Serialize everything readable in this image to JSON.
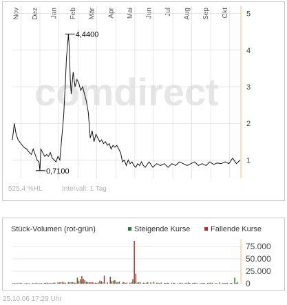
{
  "price_panel": {
    "watermark": "comdirect",
    "info_change": "525,4 %HL",
    "info_interval": "Intervall: 1 Tag"
  },
  "volume_panel": {
    "title": "Stück-Volumen (rot-grün)",
    "legend_up": "Steigende Kurse",
    "legend_down": "Fallende Kurse"
  },
  "timestamp": "25.10.06   17:29 Uhr",
  "colors": {
    "up": "#2e7d32",
    "down": "#c62828",
    "line": "#111111",
    "grid": "#d6d6d6",
    "axis_band": "#ffe7b3",
    "watermark": "#e6e6e6"
  },
  "chart_data": [
    {
      "type": "line",
      "x_labels": [
        "Nov",
        "Dez",
        "Jan",
        "Feb",
        "Mär",
        "Apr",
        "Mai",
        "Jun",
        "Jul",
        "Aug",
        "Sep",
        "Okt"
      ],
      "y_ticks": [
        1,
        2,
        3,
        4,
        5
      ],
      "ylim": [
        0.5,
        5.2
      ],
      "grid": true,
      "annotations": [
        {
          "text": "4,4400",
          "x": 3.0,
          "y": 4.44
        },
        {
          "text": "0,7100",
          "x": 1.45,
          "y": 0.71
        }
      ],
      "series": [
        {
          "x": [
            0,
            0.1,
            0.2,
            0.3,
            0.45,
            0.6,
            0.75,
            0.9,
            1.0,
            1.1,
            1.2,
            1.3,
            1.4,
            1.45,
            1.5,
            1.6,
            1.7,
            1.8,
            1.9,
            2.0,
            2.1,
            2.2,
            2.3,
            2.4,
            2.5,
            2.6,
            2.7,
            2.8,
            2.85,
            2.9,
            2.95,
            3.0,
            3.05,
            3.1,
            3.2,
            3.3,
            3.4,
            3.5,
            3.6,
            3.7,
            3.8,
            3.9,
            4.0,
            4.1,
            4.2,
            4.3,
            4.4,
            4.5,
            4.6,
            4.7,
            4.8,
            4.9,
            5.0,
            5.1,
            5.2,
            5.3,
            5.4,
            5.5,
            5.6,
            5.7,
            5.8,
            5.9,
            6.0,
            6.1,
            6.2,
            6.3,
            6.4,
            6.5,
            6.6,
            6.7,
            6.8,
            6.9,
            7.0,
            7.2,
            7.4,
            7.6,
            7.8,
            8.0,
            8.2,
            8.4,
            8.6,
            8.8,
            9.0,
            9.2,
            9.4,
            9.6,
            9.8,
            10.0,
            10.2,
            10.4,
            10.6,
            10.8,
            11.0,
            11.2,
            11.4,
            11.6,
            11.8,
            12.0
          ],
          "y": [
            1.55,
            2.0,
            1.7,
            1.55,
            1.45,
            1.35,
            1.3,
            1.2,
            1.15,
            1.3,
            1.15,
            1.0,
            0.95,
            0.71,
            1.3,
            1.2,
            1.1,
            1.15,
            1.1,
            1.2,
            1.05,
            1.0,
            0.95,
            1.1,
            1.0,
            1.6,
            2.2,
            3.2,
            3.8,
            4.1,
            4.44,
            4.0,
            3.2,
            2.8,
            3.4,
            3.0,
            3.2,
            3.1,
            2.9,
            3.0,
            2.8,
            2.6,
            2.3,
            1.6,
            1.8,
            1.5,
            1.7,
            1.6,
            1.5,
            1.55,
            1.45,
            1.5,
            1.4,
            1.45,
            1.3,
            1.4,
            1.35,
            1.4,
            1.3,
            1.2,
            0.95,
            1.0,
            0.85,
            1.0,
            0.9,
            0.95,
            0.85,
            0.8,
            0.9,
            0.85,
            0.95,
            0.85,
            0.8,
            0.95,
            0.8,
            0.9,
            0.85,
            0.9,
            0.8,
            0.9,
            0.85,
            0.95,
            0.9,
            0.85,
            0.9,
            0.95,
            0.85,
            0.9,
            0.85,
            0.95,
            0.88,
            0.92,
            0.9,
            0.95,
            0.9,
            1.05,
            0.9,
            1.0
          ]
        }
      ]
    },
    {
      "type": "bar",
      "y_ticks_labels": [
        "0",
        "25.000",
        "50.000",
        "75.000"
      ],
      "y_ticks": [
        0,
        25000,
        50000,
        75000
      ],
      "ylim": [
        0,
        90000
      ],
      "grid": true,
      "series": [
        {
          "name": "Steigende Kurse",
          "values": [
            0,
            1200,
            0,
            900,
            0,
            1500,
            0,
            0,
            800,
            0,
            1100,
            0,
            0,
            0,
            1000,
            0,
            1600,
            0,
            900,
            0,
            0,
            1400,
            0,
            2000,
            0,
            1200,
            0,
            1800,
            0,
            0,
            2200,
            0,
            3000,
            0,
            2400,
            0,
            0,
            3200,
            0,
            2800,
            0,
            2000,
            0,
            12000,
            0,
            9000,
            4000,
            0,
            7000,
            0,
            3000,
            0,
            2500,
            0,
            2000,
            0,
            1500,
            0,
            6000,
            0,
            3000,
            0,
            0,
            2500,
            0,
            14000,
            5000,
            0,
            7000,
            0,
            3000,
            0,
            0,
            2000,
            0,
            1500,
            0,
            0,
            1800,
            0,
            9000,
            3000,
            0,
            2000,
            0,
            2500,
            0,
            0,
            1500,
            0,
            3000,
            0,
            1200,
            0,
            4000,
            0,
            0,
            1500,
            0,
            2000,
            0,
            0,
            1200,
            0,
            1500,
            0,
            0,
            1800,
            0,
            0,
            1000,
            0,
            1500,
            0,
            0,
            1200,
            0,
            2200,
            0,
            0,
            1500,
            0,
            1800,
            0,
            0,
            1000,
            0,
            1300,
            0,
            0,
            1500,
            0,
            2000,
            0,
            0,
            1200,
            0,
            0,
            2500,
            0,
            1400,
            0,
            1200,
            0,
            0,
            1600,
            0,
            0,
            12000,
            0,
            3000,
            0
          ]
        },
        {
          "name": "Fallende Kurse",
          "values": [
            1000,
            0,
            800,
            0,
            1200,
            0,
            900,
            0,
            0,
            1100,
            0,
            700,
            0,
            1500,
            0,
            900,
            0,
            1000,
            0,
            1200,
            0,
            0,
            1600,
            0,
            1000,
            0,
            1400,
            0,
            2000,
            0,
            0,
            2500,
            0,
            3500,
            0,
            2000,
            0,
            0,
            2600,
            0,
            3000,
            0,
            1800,
            0,
            6000,
            0,
            15000,
            10000,
            0,
            4000,
            0,
            3000,
            0,
            2800,
            0,
            2000,
            0,
            2400,
            0,
            5000,
            0,
            16000,
            0,
            2000,
            0,
            8000,
            0,
            6000,
            0,
            2500,
            0,
            4000,
            0,
            0,
            3000,
            0,
            2200,
            0,
            0,
            2500,
            0,
            86000,
            20000,
            0,
            3000,
            0,
            0,
            2000,
            0,
            1800,
            0,
            0,
            2500,
            0,
            1500,
            0,
            2000,
            0,
            1200,
            0,
            0,
            1500,
            0,
            1800,
            0,
            0,
            1200,
            0,
            1400,
            0,
            0,
            1000,
            0,
            1300,
            0,
            0,
            1600,
            0,
            1200,
            0,
            0,
            1400,
            0,
            1100,
            0,
            0,
            1500,
            0,
            1300,
            0,
            0,
            1200,
            0,
            1700,
            0,
            0,
            1100,
            0,
            1400,
            0,
            0,
            1300,
            0,
            1600,
            0,
            0,
            1200,
            0,
            0,
            1500,
            0,
            0,
            0,
            1200
          ]
        }
      ]
    }
  ]
}
